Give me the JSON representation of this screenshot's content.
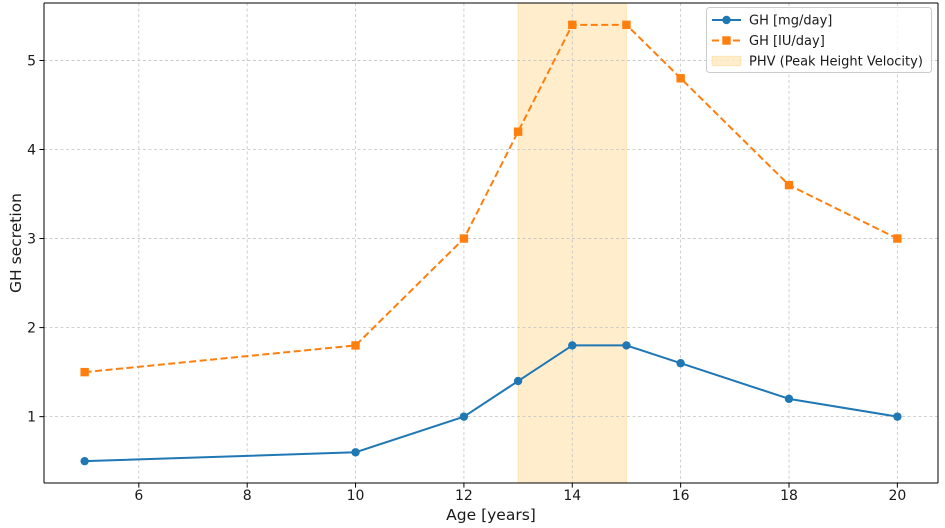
{
  "chart_data": {
    "type": "line",
    "xlabel": "Age [years]",
    "ylabel": "GH secretion",
    "x": [
      5,
      10,
      12,
      13,
      14,
      15,
      16,
      18,
      20
    ],
    "series": [
      {
        "name": "GH [mg/day]",
        "values": [
          0.5,
          0.6,
          1.0,
          1.4,
          1.8,
          1.8,
          1.6,
          1.2,
          1.0
        ],
        "color": "#1f77b4",
        "marker": "circle",
        "dashed": false
      },
      {
        "name": "GH [IU/day]",
        "values": [
          1.5,
          1.8,
          3.0,
          4.2,
          5.4,
          5.4,
          4.8,
          3.6,
          3.0
        ],
        "color": "#ff7f0e",
        "marker": "square",
        "dashed": true
      }
    ],
    "shaded_regions": [
      {
        "name": "PHV (Peak Height Velocity)",
        "x_start": 13,
        "x_end": 15,
        "color": "#ffa500",
        "opacity": 0.2
      }
    ],
    "xlim": [
      4.25,
      20.75
    ],
    "ylim": [
      0.255,
      5.645
    ],
    "x_ticks": [
      6,
      8,
      10,
      12,
      14,
      16,
      18,
      20
    ],
    "y_ticks": [
      1,
      2,
      3,
      4,
      5
    ],
    "grid": true,
    "legend_position": "top-right"
  }
}
